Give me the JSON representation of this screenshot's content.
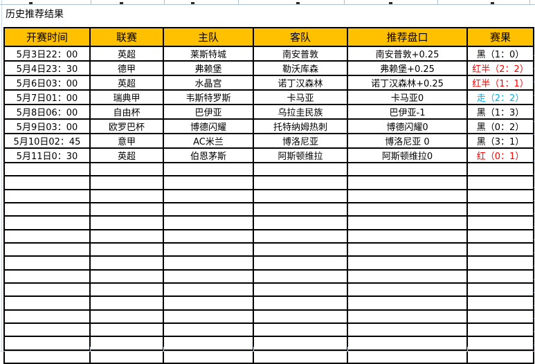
{
  "title": "历史推荐结果",
  "table": {
    "headers": [
      "开赛时间",
      "联赛",
      "主队",
      "客队",
      "推荐盘口",
      "赛果"
    ],
    "rows": [
      {
        "time": "5月3日22：00",
        "league": "英超",
        "home": "莱斯特城",
        "away": "南安普敦",
        "handicap": "南安普敦+0.25",
        "result": "黑（1：0）",
        "result_color": "#000000"
      },
      {
        "time": "5月4日23：30",
        "league": "德甲",
        "home": "弗赖堡",
        "away": "勒沃库森",
        "handicap": "弗赖堡+0.25",
        "result": "红半（2：2）",
        "result_color": "#FF0000"
      },
      {
        "time": "5月6日03：00",
        "league": "英超",
        "home": "水晶宫",
        "away": "诺丁汉森林",
        "handicap": "诺丁汉森林+0.25",
        "result": "红半（1：1）",
        "result_color": "#FF0000"
      },
      {
        "time": "5月7日01：00",
        "league": "瑞典甲",
        "home": "韦斯特罗斯",
        "away": "卡马亚",
        "handicap": "卡马亚0",
        "result": "走（2：2）",
        "result_color": "#00B0F0"
      },
      {
        "time": "5月8日06：00",
        "league": "自由杯",
        "home": "巴伊亚",
        "away": "乌拉圭民族",
        "handicap": "巴伊亚-1",
        "result": "黑（1：3）",
        "result_color": "#000000"
      },
      {
        "time": "5月9日03：00",
        "league": "欧罗巴杯",
        "home": "博德闪耀",
        "away": "托特纳姆热刺",
        "handicap": "博德闪耀0",
        "result": "黑（0：2）",
        "result_color": "#000000"
      },
      {
        "time": "5月10日02：45",
        "league": "意甲",
        "home": "AC米兰",
        "away": "博洛尼亚",
        "handicap": "博洛尼亚 0",
        "result": "黑（3：1）",
        "result_color": "#000000"
      },
      {
        "time": "5月11日0：30",
        "league": "英超",
        "home": "伯恩茅斯",
        "away": "阿斯顿维拉",
        "handicap": "阿斯顿维拉0",
        "result": "红（0：1）",
        "result_color": "#FF0000"
      }
    ],
    "empty_row_count": 15
  },
  "colors": {
    "header_bg": "#FFC000",
    "result_black": "#000000",
    "result_red": "#FF0000",
    "result_push_blue": "#00B0F0",
    "table_border": "#000000",
    "sheet_grid_blue": "#A9C0D6"
  }
}
